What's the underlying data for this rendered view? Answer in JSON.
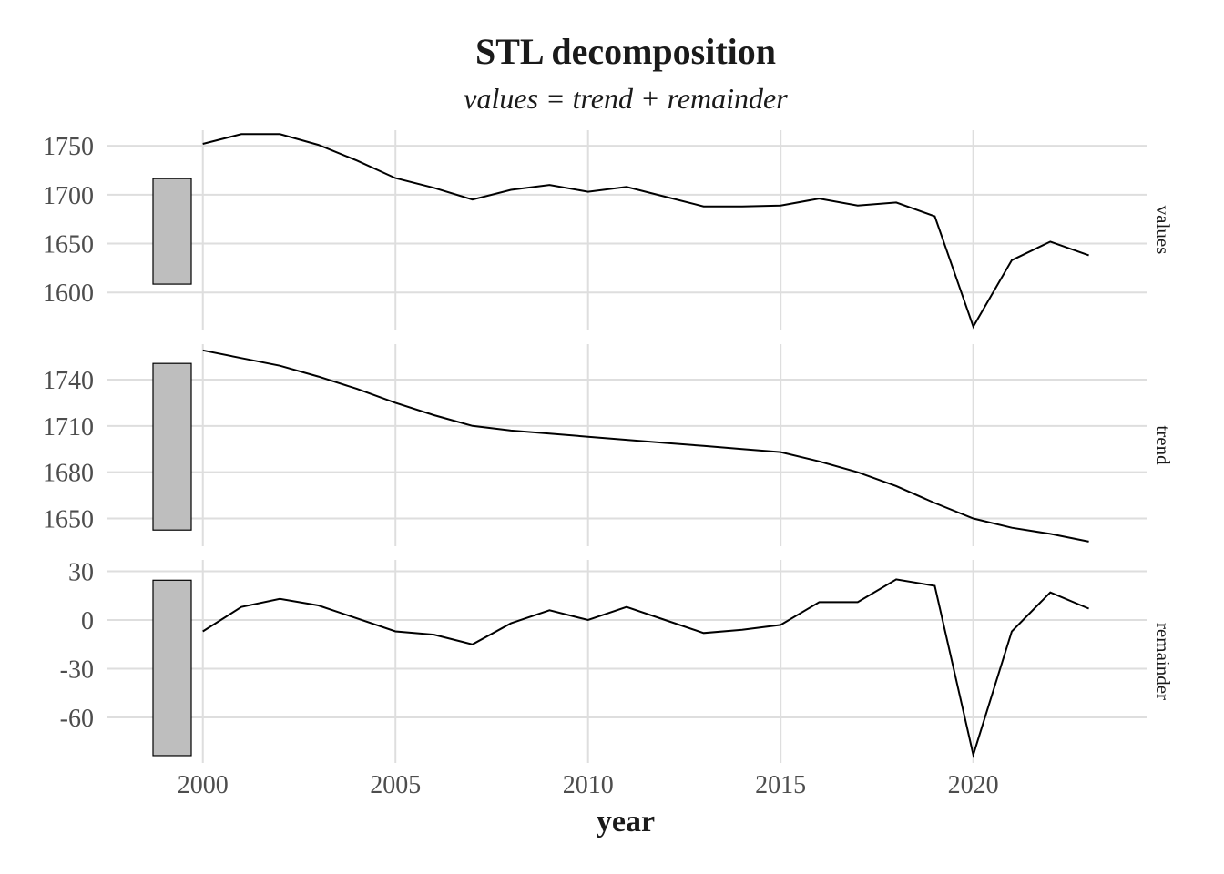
{
  "chart_data": {
    "type": "line",
    "title": "STL decomposition",
    "subtitle": "values = trend + remainder",
    "xlabel": "year",
    "x": [
      2000,
      2001,
      2002,
      2003,
      2004,
      2005,
      2006,
      2007,
      2008,
      2009,
      2010,
      2011,
      2012,
      2013,
      2014,
      2015,
      2016,
      2017,
      2018,
      2019,
      2020,
      2021,
      2022,
      2023
    ],
    "x_ticks": [
      "2000",
      "2005",
      "2010",
      "2015",
      "2020"
    ],
    "xlim": [
      1997.5,
      2024.5
    ],
    "grid": true,
    "panels": [
      {
        "name": "values",
        "strip_label": "values",
        "ylim": [
          1562,
          1766
        ],
        "y_ticks": [
          1600,
          1650,
          1700,
          1750
        ],
        "y_tick_labels": [
          "1600",
          "1650",
          "1700",
          "1750"
        ],
        "range_bar": [
          1608.5,
          1716.5
        ],
        "values": [
          1752,
          1762,
          1762,
          1751,
          1735,
          1717,
          1707,
          1695,
          1705,
          1710,
          1703,
          1708,
          1698,
          1688,
          1688,
          1689,
          1696,
          1689,
          1692,
          1678,
          1565,
          1633,
          1652,
          1638
        ]
      },
      {
        "name": "trend",
        "strip_label": "trend",
        "ylim": [
          1632,
          1763
        ],
        "y_ticks": [
          1650,
          1680,
          1710,
          1740
        ],
        "y_tick_labels": [
          "1650",
          "1680",
          "1710",
          "1740"
        ],
        "range_bar": [
          1642.5,
          1750.5
        ],
        "values": [
          1759,
          1754,
          1749,
          1742,
          1734,
          1725,
          1717,
          1710,
          1707,
          1705,
          1703,
          1701,
          1699,
          1697,
          1695,
          1693,
          1687,
          1680,
          1671,
          1660,
          1650,
          1644,
          1640,
          1635
        ]
      },
      {
        "name": "remainder",
        "strip_label": "remainder",
        "ylim": [
          -88,
          37
        ],
        "y_ticks": [
          -60,
          -30,
          0,
          30
        ],
        "y_tick_labels": [
          "-60",
          "-30",
          "0",
          "30"
        ],
        "range_bar": [
          -83.5,
          24.5
        ],
        "values": [
          -7,
          8,
          13,
          9,
          1,
          -7,
          -9,
          -15,
          -2,
          6,
          0,
          8,
          0,
          -8,
          -6,
          -3,
          11,
          11,
          25,
          21,
          -83,
          -7,
          17,
          7
        ]
      }
    ]
  }
}
